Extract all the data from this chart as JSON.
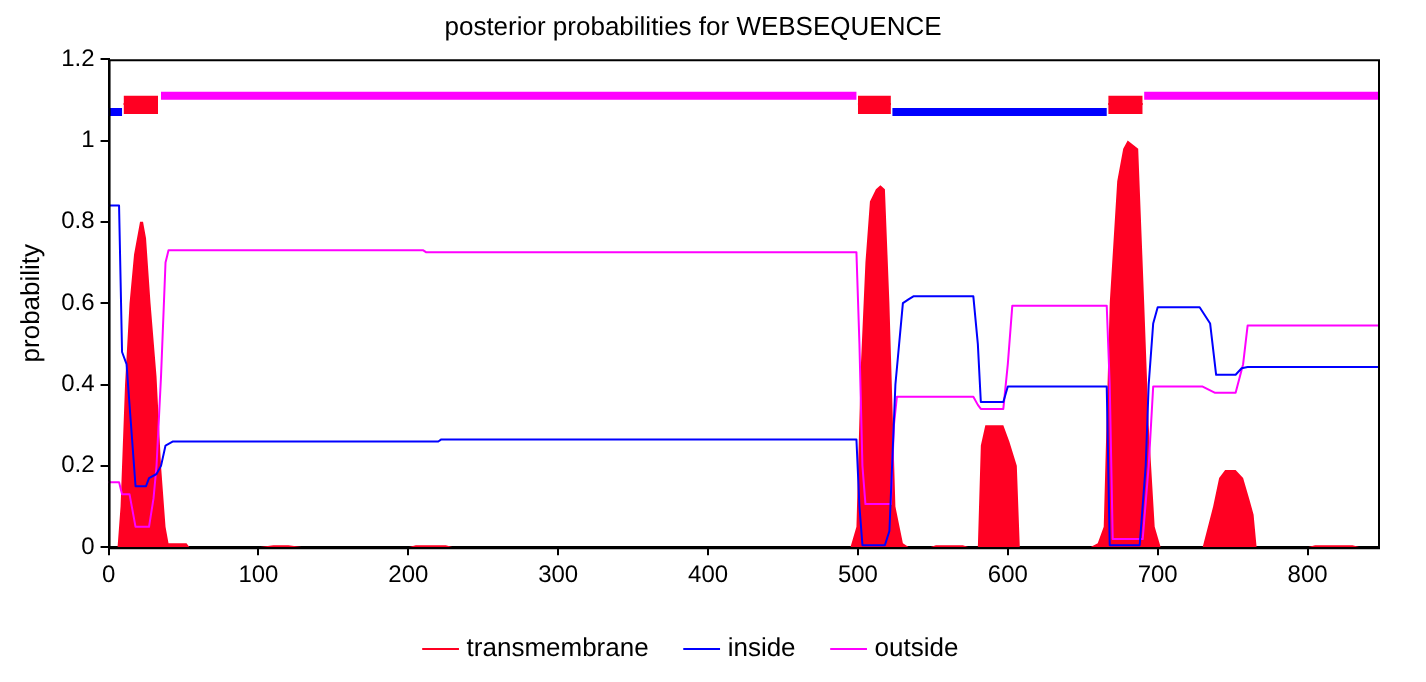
{
  "chart_data": {
    "type": "line",
    "title": "posterior probabilities for WEBSEQUENCE",
    "ylabel": "probability",
    "xlim": [
      0,
      847
    ],
    "ylim": [
      0,
      1.2
    ],
    "xticks": [
      0,
      100,
      200,
      300,
      400,
      500,
      600,
      700,
      800
    ],
    "yticks": [
      0,
      0.2,
      0.4,
      0.6,
      0.8,
      1,
      1.2
    ],
    "grid": false,
    "legend": "bottom",
    "marker": "none",
    "line_style": "solid",
    "series": [
      {
        "name": "transmembrane",
        "type": "area",
        "color": "#ff0022",
        "x": [
          0,
          6,
          8,
          11,
          14,
          17,
          21,
          23,
          25,
          28,
          32,
          35,
          38,
          40,
          52,
          54,
          100,
          110,
          120,
          130,
          200,
          205,
          225,
          230,
          495,
          499,
          502,
          505,
          508,
          512,
          515,
          518,
          521,
          525,
          530,
          534,
          548,
          552,
          570,
          574,
          580,
          582,
          585,
          597,
          601,
          606,
          608,
          655,
          660,
          664,
          668,
          673,
          677,
          680,
          687,
          691,
          694,
          698,
          702,
          730,
          737,
          741,
          745,
          752,
          757,
          761,
          764,
          766,
          800,
          805,
          830,
          835,
          847
        ],
        "values": [
          0,
          0,
          0.1,
          0.4,
          0.6,
          0.72,
          0.8,
          0.8,
          0.76,
          0.6,
          0.42,
          0.2,
          0.05,
          0.01,
          0.01,
          0,
          0,
          0.005,
          0.005,
          0,
          0,
          0.005,
          0.005,
          0,
          0,
          0.05,
          0.45,
          0.7,
          0.85,
          0.88,
          0.89,
          0.88,
          0.6,
          0.1,
          0.01,
          0,
          0,
          0.005,
          0.005,
          0,
          0,
          0.25,
          0.3,
          0.3,
          0.26,
          0.2,
          0,
          0,
          0.01,
          0.05,
          0.6,
          0.9,
          0.98,
          1,
          0.98,
          0.6,
          0.3,
          0.05,
          0,
          0,
          0.1,
          0.17,
          0.19,
          0.19,
          0.17,
          0.12,
          0.08,
          0,
          0,
          0.005,
          0.005,
          0,
          0
        ]
      },
      {
        "name": "inside",
        "color": "#0000ff",
        "x": [
          0,
          7,
          9,
          12,
          15,
          18,
          25,
          27,
          32,
          35,
          38,
          43,
          220,
          222,
          499,
          501,
          503,
          518,
          521,
          525,
          530,
          534,
          537,
          577,
          580,
          582,
          597,
          600,
          666,
          668,
          688,
          692,
          694,
          697,
          700,
          728,
          735,
          739,
          752,
          756,
          760,
          847
        ],
        "values": [
          0.84,
          0.84,
          0.48,
          0.45,
          0.3,
          0.15,
          0.15,
          0.17,
          0.18,
          0.2,
          0.25,
          0.26,
          0.26,
          0.265,
          0.265,
          0.1,
          0.005,
          0.005,
          0.04,
          0.4,
          0.6,
          0.61,
          0.617,
          0.617,
          0.5,
          0.357,
          0.357,
          0.395,
          0.395,
          0.005,
          0.005,
          0.2,
          0.4,
          0.55,
          0.59,
          0.59,
          0.55,
          0.424,
          0.424,
          0.44,
          0.443,
          0.443
        ]
      },
      {
        "name": "outside",
        "color": "#ff00ff",
        "x": [
          0,
          7,
          9,
          14,
          18,
          27,
          30,
          32,
          35,
          38,
          40,
          210,
          212,
          499,
          501,
          503,
          505,
          522,
          524,
          526,
          577,
          580,
          582,
          597,
          600,
          603,
          666,
          668,
          670,
          690,
          694,
          697,
          730,
          738,
          752,
          757,
          760,
          847
        ],
        "values": [
          0.16,
          0.16,
          0.13,
          0.13,
          0.05,
          0.05,
          0.12,
          0.2,
          0.42,
          0.7,
          0.73,
          0.73,
          0.725,
          0.725,
          0.5,
          0.2,
          0.106,
          0.106,
          0.3,
          0.37,
          0.37,
          0.35,
          0.34,
          0.34,
          0.45,
          0.594,
          0.594,
          0.4,
          0.02,
          0.02,
          0.2,
          0.395,
          0.395,
          0.38,
          0.38,
          0.45,
          0.545,
          0.545
        ]
      },
      {
        "color": "#ff00ff",
        "x": [
          35,
          499,
          500,
          691,
          847
        ],
        "values": [
          1.11,
          1.11,
          null,
          1.11,
          1.11
        ]
      },
      {
        "color": "#0000ff",
        "x": [
          0,
          9,
          10,
          523,
          666
        ],
        "values": [
          1.07,
          1.07,
          null,
          1.07,
          1.07
        ]
      },
      {
        "color": "#ff0022",
        "x": [
          10,
          33,
          34,
          500,
          522,
          523,
          667,
          690
        ],
        "values": [
          1.09,
          1.09,
          null,
          1.09,
          1.09,
          null,
          1.09,
          1.09
        ],
        "lower": [
          1.065,
          1.065,
          null,
          1.065,
          1.065,
          null,
          1.065,
          1.065
        ],
        "upper": [
          1.11,
          1.11,
          null,
          1.11,
          1.11,
          null,
          1.11,
          1.11
        ]
      }
    ]
  }
}
